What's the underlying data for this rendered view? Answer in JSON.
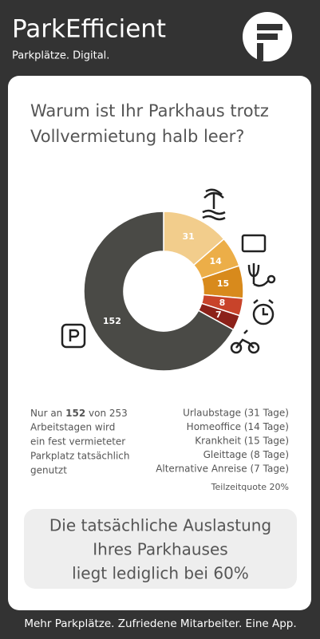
{
  "header": {
    "title": "ParkEfficient",
    "subtitle": "Parkplätze. Digital."
  },
  "chart_data": {
    "type": "donut",
    "title": "Warum ist Ihr Parkhaus trotz Vollvermietung halb leer?",
    "title_lines": [
      "Warum ist Ihr Parkhaus trotz",
      "Vollvermietung halb leer?"
    ],
    "categories": [
      "Urlaubstage (31 Tage)",
      "Homeoffice (14 Tage)",
      "Krankheit (15 Tage)",
      "Gleittage (8 Tage)",
      "Alternative Anreise (7 Tage)",
      null
    ],
    "values": [
      31,
      14,
      15,
      8,
      7,
      152
    ],
    "colors": [
      "#f2cd8c",
      "#ecae48",
      "#d88a1c",
      "#c8432a",
      "#8c2119",
      "#4a4a46"
    ]
  },
  "notes": {
    "line0": [
      "Nur an",
      "152",
      "von 253"
    ],
    "lines": [
      "Arbeitstagen wird",
      "ein fest vermieteter",
      "Parkplatz tatsächlich",
      "genutzt"
    ],
    "part_time": "Teilzeitquote 20%"
  },
  "conclusion": [
    "Die tatsächliche Auslastung",
    "Ihres Parkhauses",
    "liegt lediglich bei 60%"
  ],
  "footer": "Mehr Parkplätze. Zufriedene Mitarbeiter. Eine App."
}
